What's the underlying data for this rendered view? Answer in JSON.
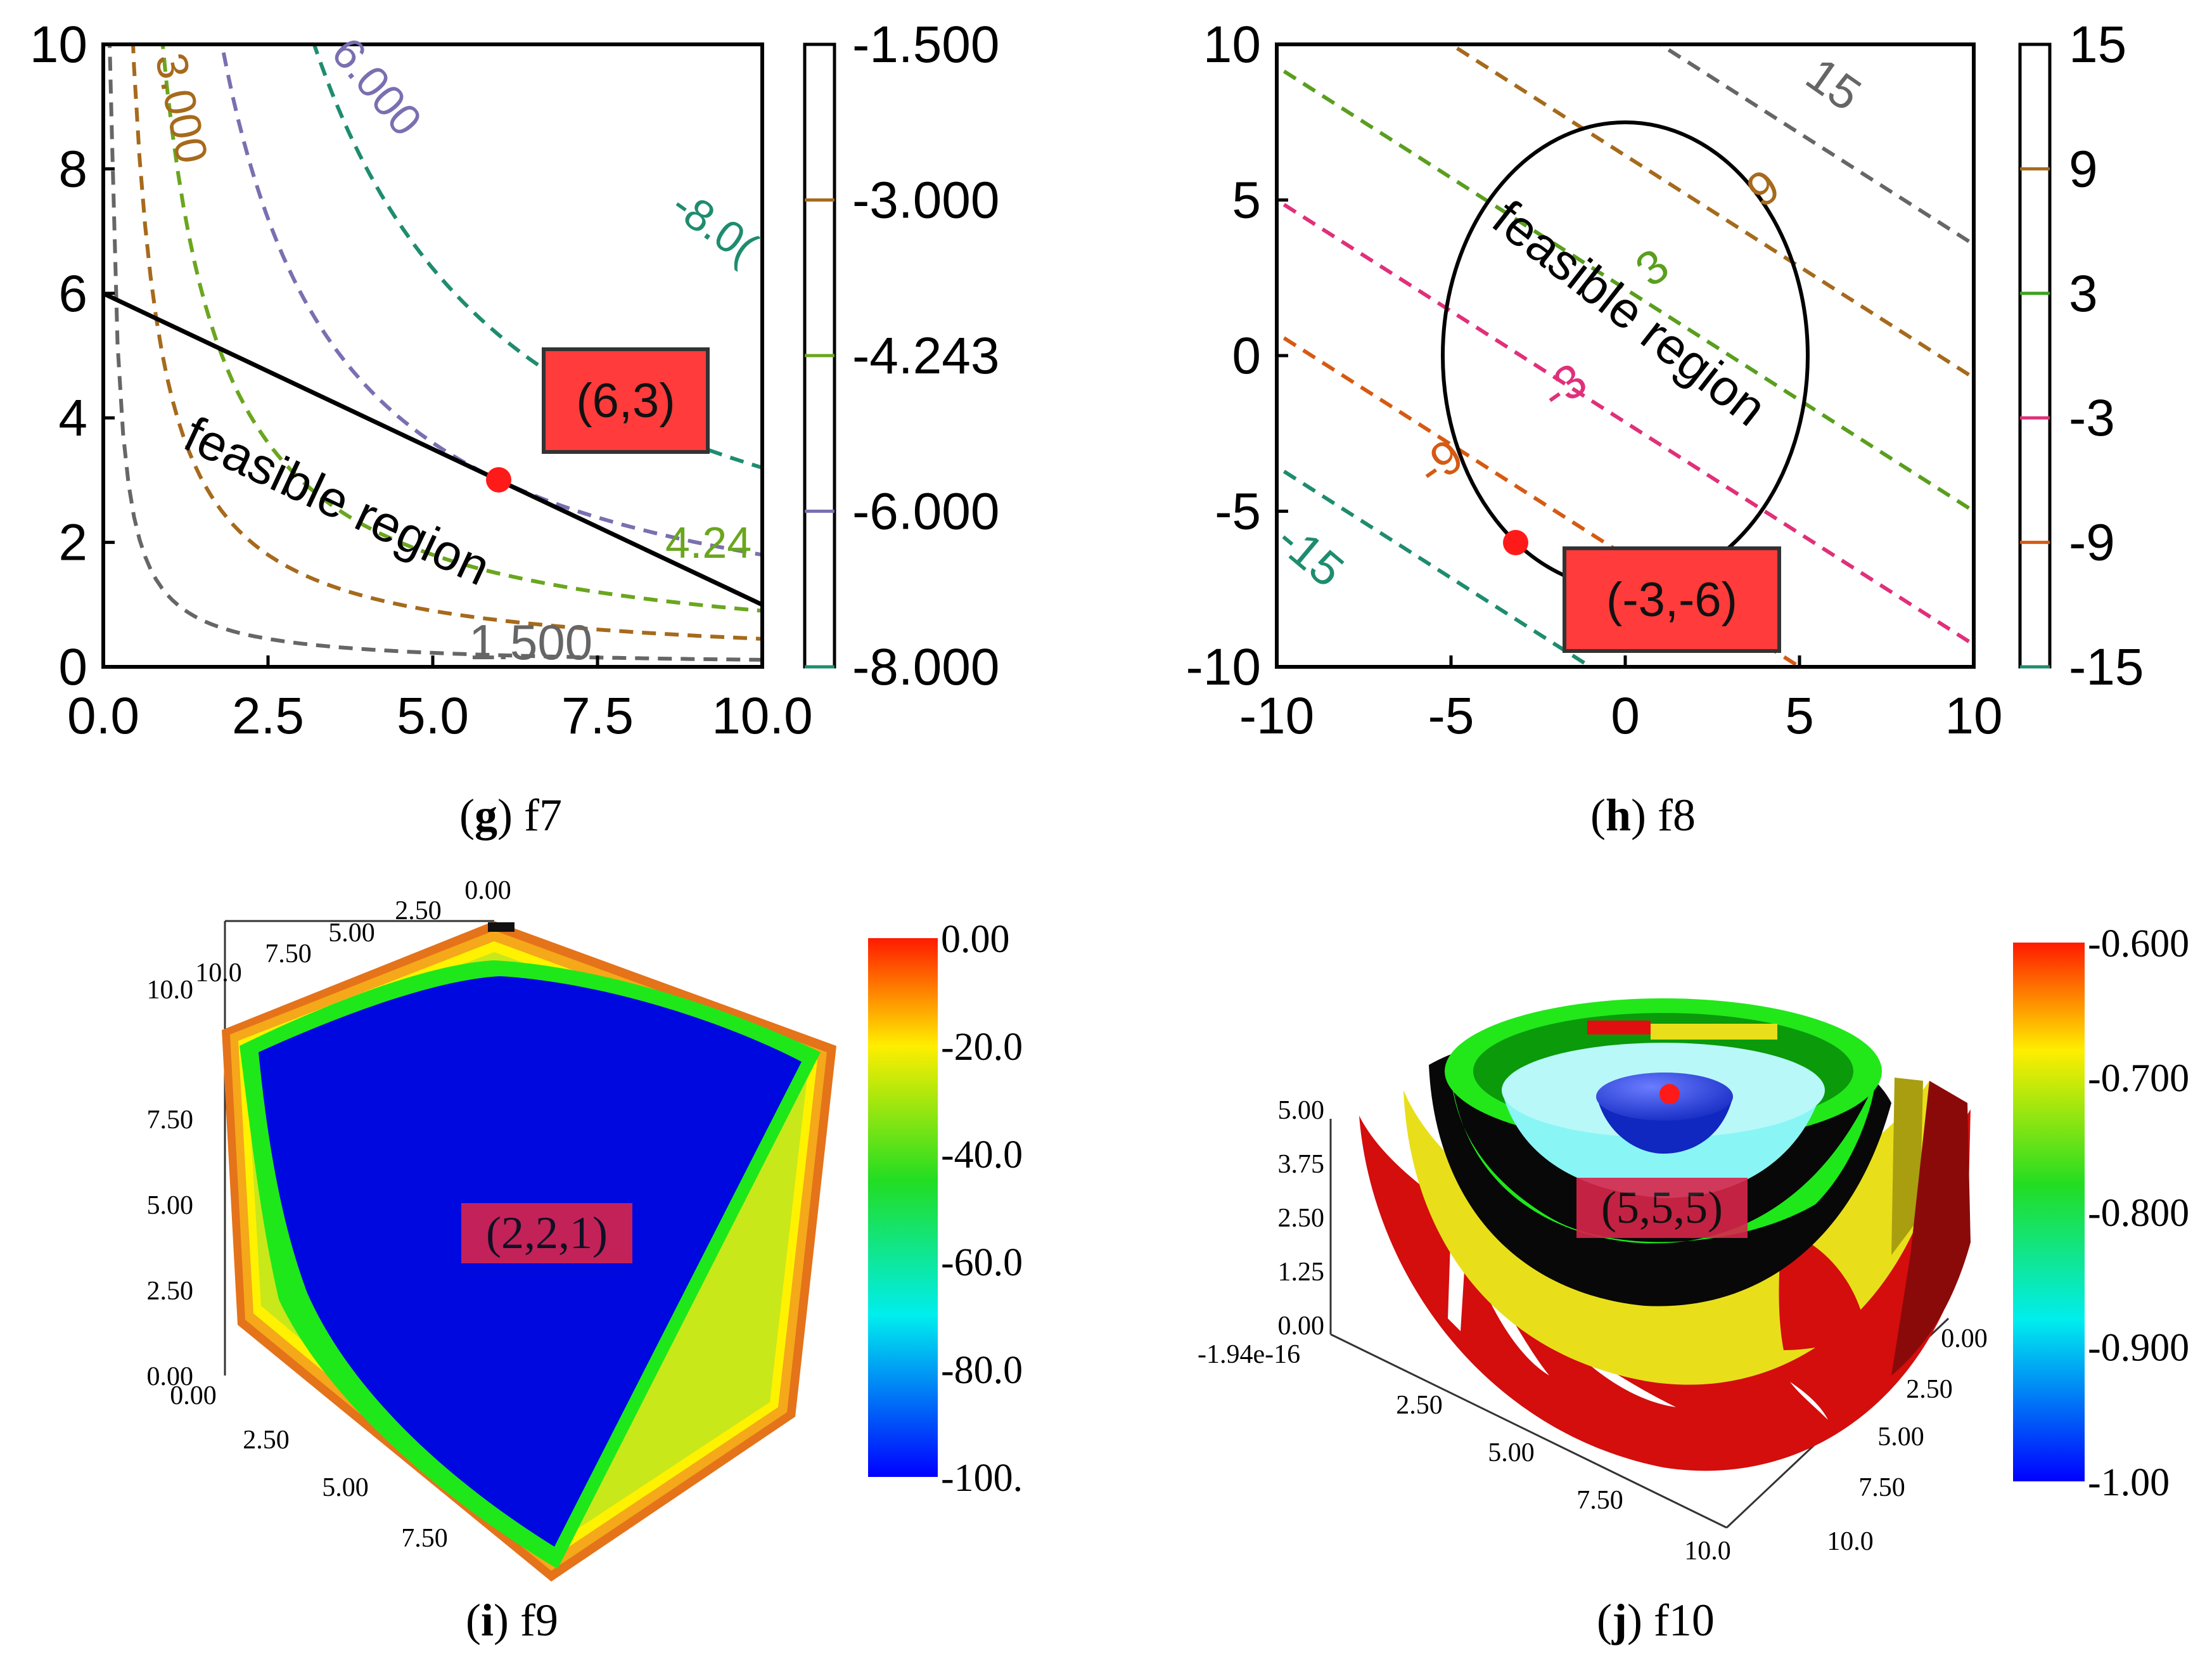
{
  "charts": {
    "g": {
      "caption_letter": "g",
      "caption_name": "f7",
      "x_ticks": [
        "0.0",
        "2.5",
        "5.0",
        "7.5",
        "10.0"
      ],
      "y_ticks": [
        "0",
        "2",
        "4",
        "6",
        "8",
        "10"
      ],
      "region_label": "feasible region",
      "optimum_label": "(6,3)",
      "contour_labels": [
        "3.000",
        "6.000",
        "-8.0(",
        "4.24",
        "1.500"
      ],
      "colorbar_ticks": [
        "-1.500",
        "-3.000",
        "-4.243",
        "-6.000",
        "-8.000"
      ]
    },
    "h": {
      "caption_letter": "h",
      "caption_name": "f8",
      "x_ticks": [
        "-10",
        "-5",
        "0",
        "5",
        "10"
      ],
      "y_ticks": [
        "10",
        "5",
        "0",
        "-5",
        "-10"
      ],
      "region_label": "feasible region",
      "optimum_label": "(-3,-6)",
      "contour_labels": [
        "15",
        "9",
        "3",
        "-3",
        "-9",
        "-15"
      ],
      "colorbar_ticks": [
        "15",
        "9",
        "3",
        "-3",
        "-9",
        "-15"
      ]
    },
    "i": {
      "caption_letter": "i",
      "caption_name": "f9",
      "optimum_label": "(2,2,1)",
      "top_ticks": [
        "0.00",
        "2.50",
        "5.00",
        "7.50",
        "10.0"
      ],
      "left_ticks": [
        "10.0",
        "7.50",
        "5.00",
        "2.50",
        "0.00"
      ],
      "bottom_ticks": [
        "0.00",
        "2.50",
        "5.00",
        "7.50"
      ],
      "colorbar_ticks": [
        "0.00",
        "-20.0",
        "-40.0",
        "-60.0",
        "-80.0",
        "-100."
      ]
    },
    "j": {
      "caption_letter": "j",
      "caption_name": "f10",
      "optimum_label": "(5,5,5)",
      "z_ticks": [
        "5.00",
        "3.75",
        "2.50",
        "1.25",
        "0.00"
      ],
      "z_origin": "-1.94e-16",
      "x_ticks": [
        "2.50",
        "5.00",
        "7.50",
        "10.0"
      ],
      "y_ticks": [
        "0.00",
        "2.50",
        "5.00",
        "7.50",
        "10.0"
      ],
      "colorbar_ticks": [
        "-0.600",
        "-0.700",
        "-0.800",
        "-0.900",
        "-1.00"
      ]
    }
  },
  "chart_data": [
    {
      "type": "contour",
      "name": "f7",
      "xlim": [
        0,
        10
      ],
      "ylim": [
        0,
        10
      ],
      "levels": [
        -1.5,
        -3.0,
        -4.243,
        -6.0,
        -8.0
      ],
      "constraint": "x + 2y = 12",
      "optimum": {
        "x": 6,
        "y": 3
      },
      "colorbar_range": [
        -8.0,
        -1.5
      ]
    },
    {
      "type": "contour",
      "name": "f8",
      "xlim": [
        -10,
        10
      ],
      "ylim": [
        -10,
        10
      ],
      "levels": [
        15,
        9,
        3,
        -3,
        -9,
        -15
      ],
      "constraint": "ellipse centred (0,0), semi-axes 5 and 7.5",
      "optimum": {
        "x": -3,
        "y": -6
      },
      "colorbar_range": [
        -15,
        15
      ]
    },
    {
      "type": "surface3d",
      "name": "f9",
      "range": [
        0,
        10
      ],
      "optimum": [
        2,
        2,
        1
      ],
      "colorbar_range": [
        -100,
        0
      ]
    },
    {
      "type": "surface3d",
      "name": "f10",
      "range": [
        0,
        10
      ],
      "optimum": [
        5,
        5,
        5
      ],
      "colorbar_range": [
        -1.0,
        -0.6
      ]
    }
  ]
}
